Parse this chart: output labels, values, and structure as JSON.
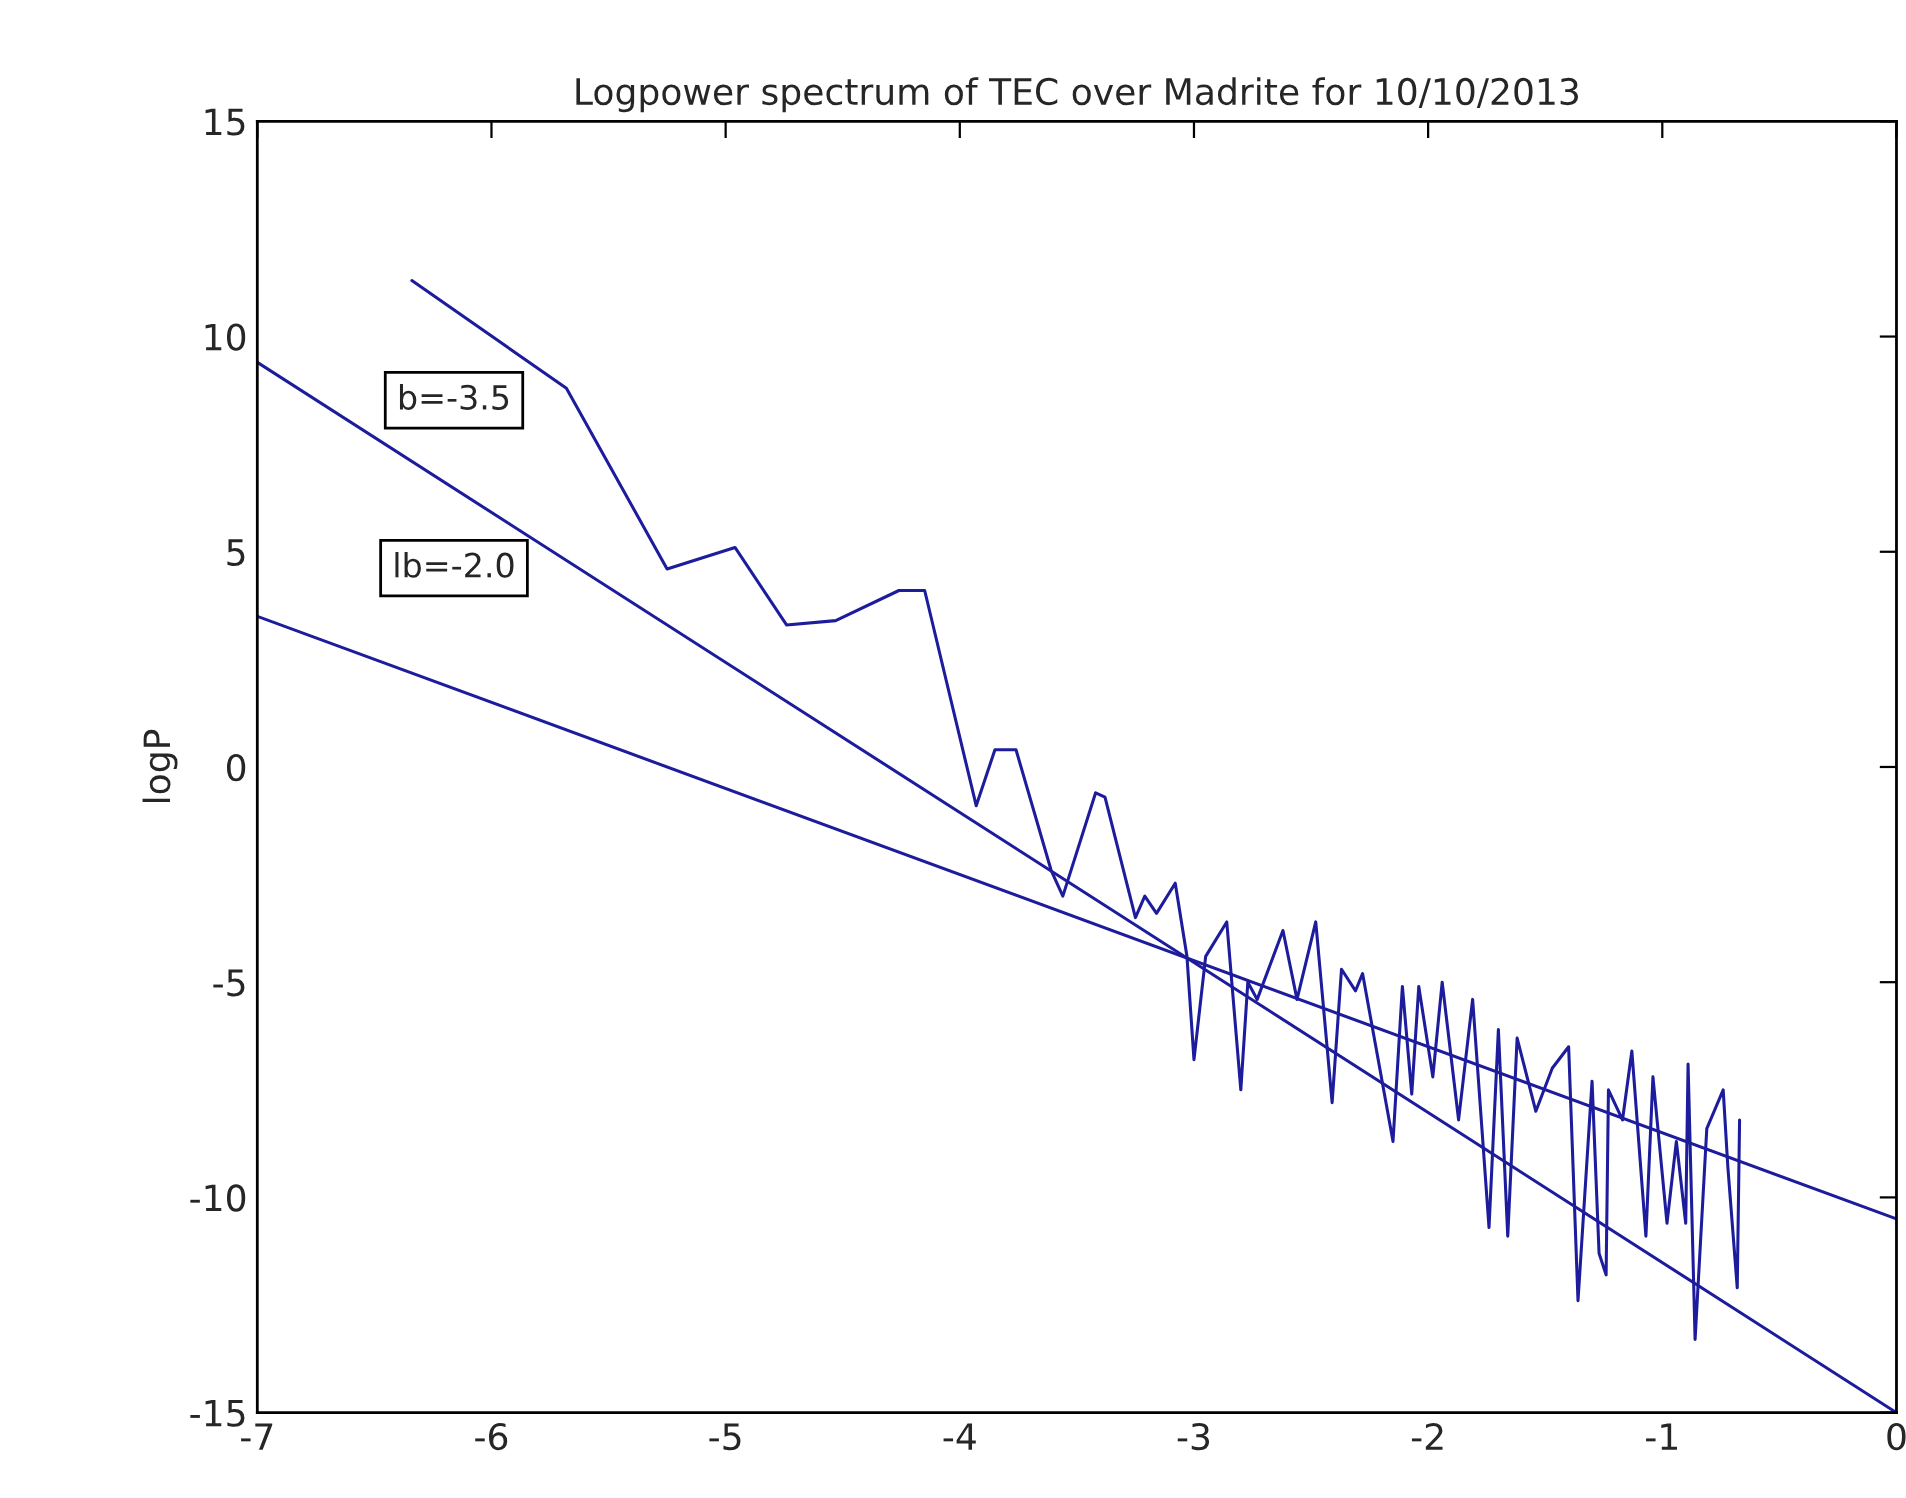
{
  "chart_data": {
    "type": "line",
    "title": "Logpower spectrum of TEC over Madrite for 10/10/2013",
    "ylabel": "logP",
    "xlim": [
      -7,
      0
    ],
    "ylim": [
      -15,
      15
    ],
    "xticks": [
      -7,
      -6,
      -5,
      -4,
      -3,
      -2,
      -1,
      0
    ],
    "yticks": [
      -15,
      -10,
      -5,
      0,
      5,
      10,
      15
    ],
    "grid": false,
    "marker": "none",
    "line_style": "solid",
    "series": [
      {
        "color": "#1c1c9c",
        "x": [
          -6.34,
          -5.68,
          -5.25,
          -4.96,
          -4.74,
          -4.53,
          -4.26,
          -4.15,
          -3.93,
          -3.85,
          -3.76,
          -3.61,
          -3.56,
          -3.42,
          -3.38,
          -3.25,
          -3.21,
          -3.16,
          -3.08,
          -3.03,
          -3.0,
          -2.95,
          -2.86,
          -2.8,
          -2.77,
          -2.73,
          -2.62,
          -2.56,
          -2.48,
          -2.41,
          -2.37,
          -2.31,
          -2.28,
          -2.22,
          -2.15,
          -2.11,
          -2.07,
          -2.04,
          -1.98,
          -1.94,
          -1.87,
          -1.81,
          -1.74,
          -1.7,
          -1.66,
          -1.62,
          -1.54,
          -1.47,
          -1.4,
          -1.36,
          -1.3,
          -1.27,
          -1.24,
          -1.23,
          -1.17,
          -1.13,
          -1.07,
          -1.04,
          -0.98,
          -0.94,
          -0.9,
          -0.89,
          -0.86,
          -0.81,
          -0.74,
          -0.72,
          -0.68,
          -0.67
        ],
        "values": [
          11.3,
          8.8,
          4.6,
          5.1,
          3.3,
          3.4,
          4.1,
          4.1,
          -0.9,
          0.4,
          0.4,
          -2.4,
          -3.0,
          -0.6,
          -0.7,
          -3.5,
          -3.0,
          -3.4,
          -2.7,
          -4.4,
          -6.8,
          -4.4,
          -3.6,
          -7.5,
          -5.0,
          -5.4,
          -3.8,
          -5.4,
          -3.6,
          -7.8,
          -4.7,
          -5.2,
          -4.8,
          -6.6,
          -8.7,
          -5.1,
          -7.6,
          -5.1,
          -7.2,
          -5.0,
          -8.2,
          -5.4,
          -10.7,
          -6.1,
          -10.9,
          -6.3,
          -8.0,
          -7.0,
          -6.5,
          -12.4,
          -7.3,
          -11.3,
          -11.8,
          -7.5,
          -8.2,
          -6.6,
          -10.9,
          -7.2,
          -10.6,
          -8.7,
          -10.6,
          -6.9,
          -13.3,
          -8.4,
          -7.5,
          -9.3,
          -12.1,
          -8.2
        ]
      },
      {
        "type": "line",
        "color": "#1c1c9c",
        "x": [
          -7,
          0
        ],
        "values": [
          9.4,
          -15
        ]
      },
      {
        "type": "line",
        "color": "#1c1c9c",
        "x": [
          -7,
          0
        ],
        "values": [
          3.5,
          -10.5
        ]
      }
    ],
    "annotations": [
      "b=-3.5",
      "lb=-2.0"
    ]
  }
}
